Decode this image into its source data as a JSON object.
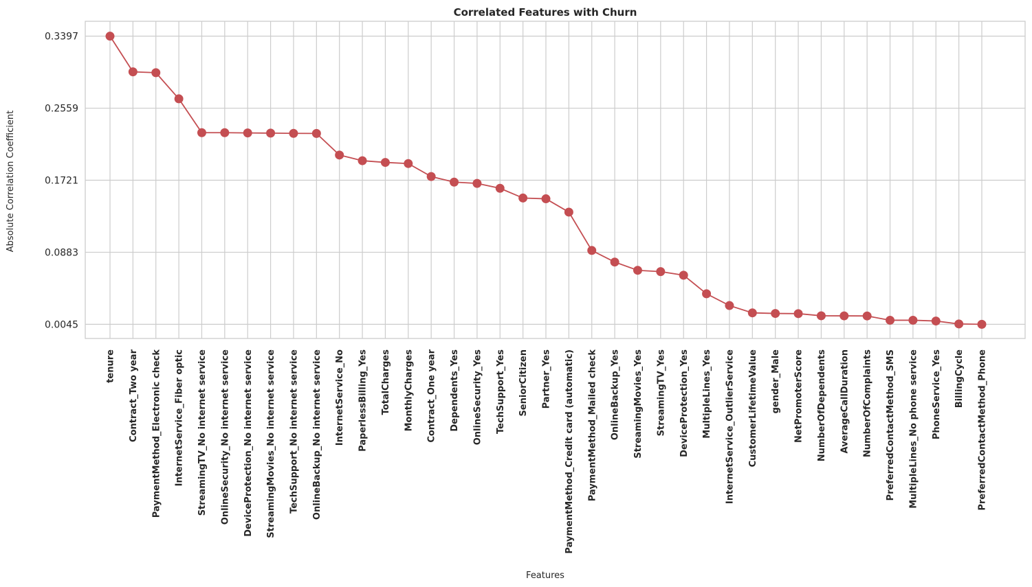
{
  "chart_data": {
    "type": "line",
    "title": "Correlated Features with Churn",
    "xlabel": "Features",
    "ylabel": "Absolute Correlation Coefficient",
    "ylim": [
      -0.012,
      0.357
    ],
    "yticks": [
      0.0045,
      0.0883,
      0.1721,
      0.2559,
      0.3397
    ],
    "ytick_labels": [
      "0.0045",
      "0.0883",
      "0.1721",
      "0.2559",
      "0.3397"
    ],
    "grid": true,
    "color": "#c44e52",
    "categories": [
      "tenure",
      "Contract_Two year",
      "PaymentMethod_Electronic check",
      "InternetService_Fiber optic",
      "StreamingTV_No internet service",
      "OnlineSecurity_No internet service",
      "DeviceProtection_No internet service",
      "StreamingMovies_No internet service",
      "TechSupport_No internet service",
      "OnlineBackup_No internet service",
      "InternetService_No",
      "PaperlessBilling_Yes",
      "TotalCharges",
      "MonthlyCharges",
      "Contract_One year",
      "Dependents_Yes",
      "OnlineSecurity_Yes",
      "TechSupport_Yes",
      "SeniorCitizen",
      "Partner_Yes",
      "PaymentMethod_Credit card (automatic)",
      "PaymentMethod_Mailed check",
      "OnlineBackup_Yes",
      "StreamingMovies_Yes",
      "StreamingTV_Yes",
      "DeviceProtection_Yes",
      "MultipleLines_Yes",
      "InternetService_OutlierService",
      "CustomerLifetimeValue",
      "gender_Male",
      "NetPromoterScore",
      "NumberOfDependents",
      "AverageCallDuration",
      "NumberOfComplaints",
      "PreferredContactMethod_SMS",
      "MultipleLines_No phone service",
      "PhoneService_Yes",
      "BillingCycle",
      "PreferredContactMethod_Phone"
    ],
    "values": [
      0.3397,
      0.2982,
      0.2972,
      0.2668,
      0.2274,
      0.2274,
      0.2271,
      0.2269,
      0.2266,
      0.2265,
      0.2014,
      0.1948,
      0.1928,
      0.1915,
      0.1764,
      0.1699,
      0.1684,
      0.1627,
      0.1514,
      0.1505,
      0.135,
      0.0904,
      0.0769,
      0.0673,
      0.0658,
      0.0616,
      0.04,
      0.0263,
      0.0178,
      0.0171,
      0.0169,
      0.0144,
      0.0143,
      0.0142,
      0.0092,
      0.0092,
      0.0083,
      0.0049,
      0.0045
    ]
  }
}
